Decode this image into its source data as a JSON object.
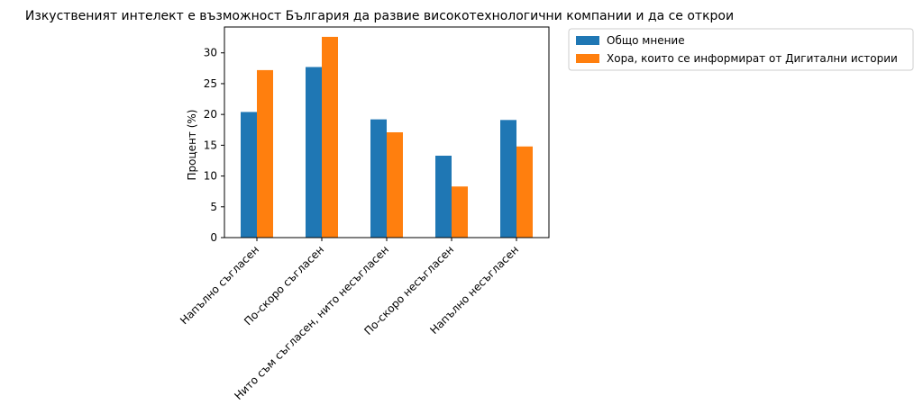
{
  "chart_data": {
    "type": "bar",
    "title": "Изкуственият интелект е възможност България да развие високотехнологични компании и да се открои",
    "xlabel": "",
    "ylabel": "Процент (%)",
    "categories": [
      "Напълно съгласен",
      "По-скоро съгласен",
      "Нито съм съгласен, нито несъгласен",
      "По-скоро несъгласен",
      "Напълно несъгласен"
    ],
    "series": [
      {
        "name": "Общо мнение",
        "color": "#1f77b4",
        "values": [
          20.4,
          27.7,
          19.2,
          13.3,
          19.1
        ]
      },
      {
        "name": "Хора, които се информират от Дигитални истории",
        "color": "#ff7f0e",
        "values": [
          27.2,
          32.6,
          17.1,
          8.3,
          14.8
        ]
      }
    ],
    "ylim": [
      0,
      34.2
    ],
    "yticks": [
      0,
      5,
      10,
      15,
      20,
      25,
      30
    ],
    "grid": false,
    "legend_position": "outside-upper-right"
  }
}
